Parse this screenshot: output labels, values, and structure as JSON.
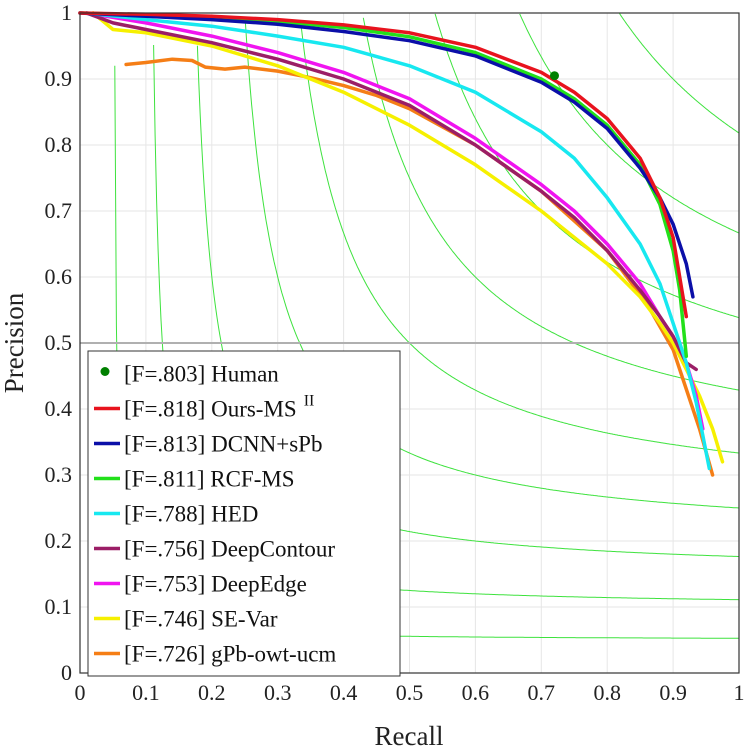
{
  "chart_data": {
    "type": "line",
    "xlabel": "Recall",
    "ylabel": "Precision",
    "xlim": [
      0,
      1
    ],
    "ylim": [
      0,
      1
    ],
    "xticks": [
      "0",
      "0.1",
      "0.2",
      "0.3",
      "0.4",
      "0.5",
      "0.6",
      "0.7",
      "0.8",
      "0.9",
      "1"
    ],
    "yticks": [
      "0",
      "0.1",
      "0.2",
      "0.3",
      "0.4",
      "0.5",
      "0.6",
      "0.7",
      "0.8",
      "0.9",
      "1"
    ],
    "grid": true,
    "reference_line_y": 0.5,
    "iso_f_contours": [
      0.1,
      0.2,
      0.3,
      0.4,
      0.5,
      0.6,
      0.7,
      0.8,
      0.9
    ],
    "legend_position": "bottom-left",
    "human_point": {
      "recall": 0.72,
      "precision": 0.905,
      "label": "[F=.803] Human",
      "color": "#008000"
    },
    "series": [
      {
        "name": "[F=.818] Ours-MS",
        "superscript": "II",
        "color": "#e8131e",
        "x": [
          0.0,
          0.1,
          0.2,
          0.3,
          0.4,
          0.5,
          0.6,
          0.7,
          0.75,
          0.8,
          0.85,
          0.88,
          0.9,
          0.91,
          0.92
        ],
        "y": [
          1.0,
          0.998,
          0.995,
          0.99,
          0.982,
          0.97,
          0.948,
          0.91,
          0.88,
          0.84,
          0.78,
          0.72,
          0.66,
          0.6,
          0.54
        ]
      },
      {
        "name": "[F=.813] DCNN+sPb",
        "color": "#0b0fa8",
        "x": [
          0.0,
          0.1,
          0.2,
          0.3,
          0.4,
          0.5,
          0.6,
          0.7,
          0.75,
          0.8,
          0.85,
          0.88,
          0.9,
          0.92,
          0.93
        ],
        "y": [
          1.0,
          0.995,
          0.99,
          0.983,
          0.972,
          0.958,
          0.935,
          0.895,
          0.865,
          0.825,
          0.765,
          0.72,
          0.68,
          0.62,
          0.57
        ]
      },
      {
        "name": "[F=.811] RCF-MS",
        "color": "#22e01a",
        "x": [
          0.0,
          0.1,
          0.2,
          0.3,
          0.4,
          0.5,
          0.6,
          0.7,
          0.75,
          0.8,
          0.85,
          0.88,
          0.9,
          0.91,
          0.915,
          0.92
        ],
        "y": [
          1.0,
          0.997,
          0.993,
          0.987,
          0.978,
          0.964,
          0.94,
          0.9,
          0.87,
          0.83,
          0.77,
          0.71,
          0.64,
          0.58,
          0.53,
          0.48
        ]
      },
      {
        "name": "[F=.788] HED",
        "color": "#17e8f0",
        "x": [
          0.01,
          0.1,
          0.2,
          0.3,
          0.4,
          0.5,
          0.6,
          0.7,
          0.75,
          0.8,
          0.85,
          0.88,
          0.9,
          0.92,
          0.935,
          0.945,
          0.955
        ],
        "y": [
          1.0,
          0.99,
          0.98,
          0.965,
          0.948,
          0.92,
          0.88,
          0.82,
          0.78,
          0.72,
          0.65,
          0.59,
          0.53,
          0.47,
          0.41,
          0.36,
          0.31
        ]
      },
      {
        "name": "[F=.756] DeepContour",
        "color": "#9b1e66",
        "x": [
          0.01,
          0.05,
          0.1,
          0.2,
          0.3,
          0.4,
          0.5,
          0.6,
          0.7,
          0.75,
          0.8,
          0.85,
          0.88,
          0.9,
          0.92,
          0.935
        ],
        "y": [
          1.0,
          0.985,
          0.975,
          0.955,
          0.93,
          0.9,
          0.86,
          0.8,
          0.73,
          0.69,
          0.64,
          0.58,
          0.54,
          0.51,
          0.47,
          0.46
        ]
      },
      {
        "name": "[F=.753] DeepEdge",
        "color": "#f014f0",
        "x": [
          0.01,
          0.1,
          0.2,
          0.3,
          0.4,
          0.5,
          0.6,
          0.7,
          0.75,
          0.8,
          0.85,
          0.88,
          0.9,
          0.92,
          0.935,
          0.945
        ],
        "y": [
          1.0,
          0.985,
          0.965,
          0.94,
          0.91,
          0.87,
          0.81,
          0.74,
          0.7,
          0.65,
          0.59,
          0.54,
          0.51,
          0.47,
          0.42,
          0.37
        ]
      },
      {
        "name": "[F=.746] SE-Var",
        "color": "#f6f000",
        "x": [
          0.02,
          0.05,
          0.1,
          0.2,
          0.3,
          0.4,
          0.5,
          0.6,
          0.7,
          0.8,
          0.85,
          0.88,
          0.9,
          0.92,
          0.94,
          0.96,
          0.975
        ],
        "y": [
          1.0,
          0.975,
          0.97,
          0.95,
          0.92,
          0.88,
          0.83,
          0.77,
          0.7,
          0.62,
          0.57,
          0.53,
          0.5,
          0.46,
          0.42,
          0.37,
          0.32
        ]
      },
      {
        "name": "[F=.726] gPb-owt-ucm",
        "color": "#f57e16",
        "x": [
          0.07,
          0.1,
          0.14,
          0.17,
          0.19,
          0.22,
          0.25,
          0.3,
          0.35,
          0.4,
          0.45,
          0.5,
          0.6,
          0.7,
          0.8,
          0.86,
          0.9,
          0.92,
          0.94,
          0.96
        ],
        "y": [
          0.922,
          0.925,
          0.93,
          0.928,
          0.918,
          0.915,
          0.918,
          0.912,
          0.902,
          0.89,
          0.875,
          0.855,
          0.8,
          0.73,
          0.64,
          0.56,
          0.49,
          0.43,
          0.37,
          0.3
        ]
      }
    ]
  }
}
